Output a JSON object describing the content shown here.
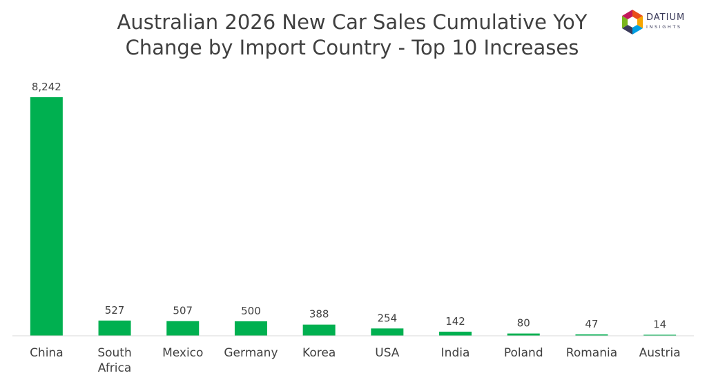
{
  "chart_data": {
    "type": "bar",
    "title_line1": "Australian 2026 New Car Sales Cumulative YoY",
    "title_line2": "Change by Import Country - Top 10 Increases",
    "categories": [
      "China",
      "South Africa",
      "Mexico",
      "Germany",
      "Korea",
      "USA",
      "India",
      "Poland",
      "Romania",
      "Austria"
    ],
    "values": [
      8242,
      527,
      507,
      500,
      388,
      254,
      142,
      80,
      47,
      14
    ],
    "value_labels": [
      "8,242",
      "527",
      "507",
      "500",
      "388",
      "254",
      "142",
      "80",
      "47",
      "14"
    ],
    "xlabel": "",
    "ylabel": "",
    "ylim": [
      0,
      8242
    ],
    "grid": false,
    "legend": "none",
    "bar_color": "#00b050"
  },
  "logo": {
    "name": "DATIUM",
    "sub": "INSIGHTS",
    "colors": [
      "#e94e1b",
      "#f7a600",
      "#009fe3",
      "#3a3a5a",
      "#7ab51d",
      "#c2185b"
    ]
  }
}
